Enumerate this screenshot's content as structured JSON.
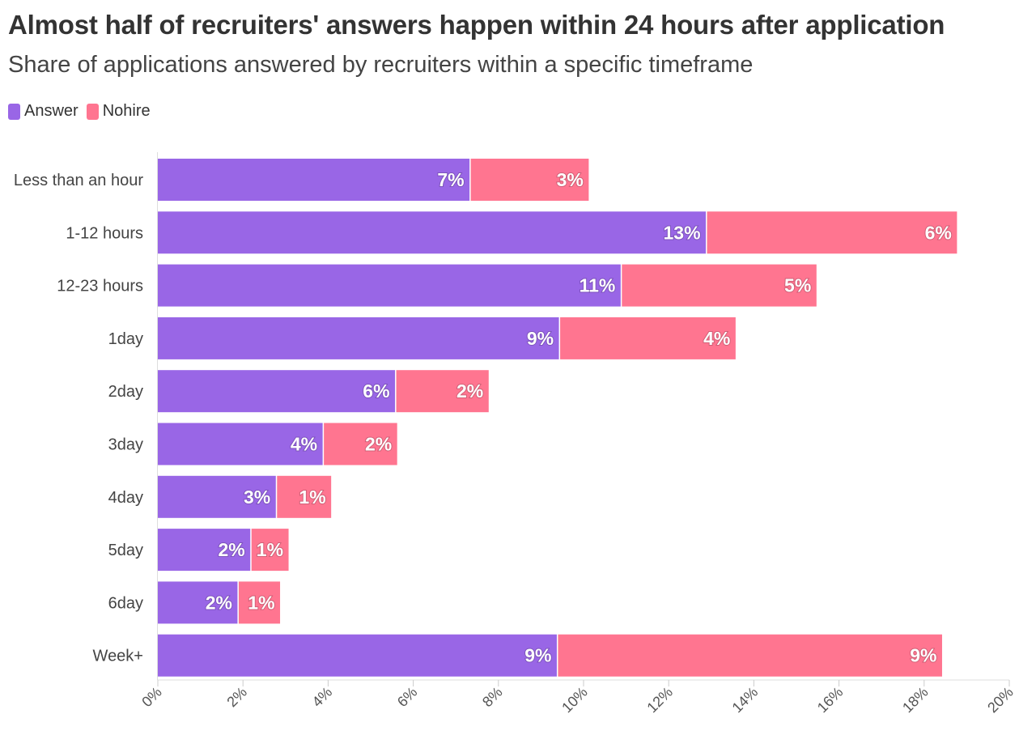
{
  "chart_data": {
    "type": "bar",
    "orientation": "horizontal",
    "stacked": true,
    "title": "Almost half of recruiters' answers happen within 24 hours after application",
    "subtitle": "Share of applications answered by recruiters within a specific timeframe",
    "categories": [
      "Less than an hour",
      "1-12 hours",
      "12-23 hours",
      "1day",
      "2day",
      "3day",
      "4day",
      "5day",
      "6day",
      "Week+"
    ],
    "series": [
      {
        "name": "Answer",
        "color": "#9966e6",
        "values": [
          7.35,
          12.9,
          10.9,
          9.45,
          5.6,
          3.9,
          2.8,
          2.2,
          1.9,
          9.4
        ],
        "labels": [
          "7%",
          "13%",
          "11%",
          "9%",
          "6%",
          "4%",
          "3%",
          "2%",
          "2%",
          "9%"
        ]
      },
      {
        "name": "Nohire",
        "color": "#ff7590",
        "values": [
          2.8,
          5.9,
          4.6,
          4.15,
          2.2,
          1.75,
          1.3,
          0.9,
          1.0,
          9.05
        ],
        "labels": [
          "3%",
          "6%",
          "5%",
          "4%",
          "2%",
          "2%",
          "1%",
          "1%",
          "1%",
          "9%"
        ]
      }
    ],
    "xlim": [
      0,
      20
    ],
    "xticks": [
      "0%",
      "2%",
      "4%",
      "6%",
      "8%",
      "10%",
      "12%",
      "14%",
      "16%",
      "18%",
      "20%"
    ],
    "legend_position": "top-left",
    "grid": false
  }
}
